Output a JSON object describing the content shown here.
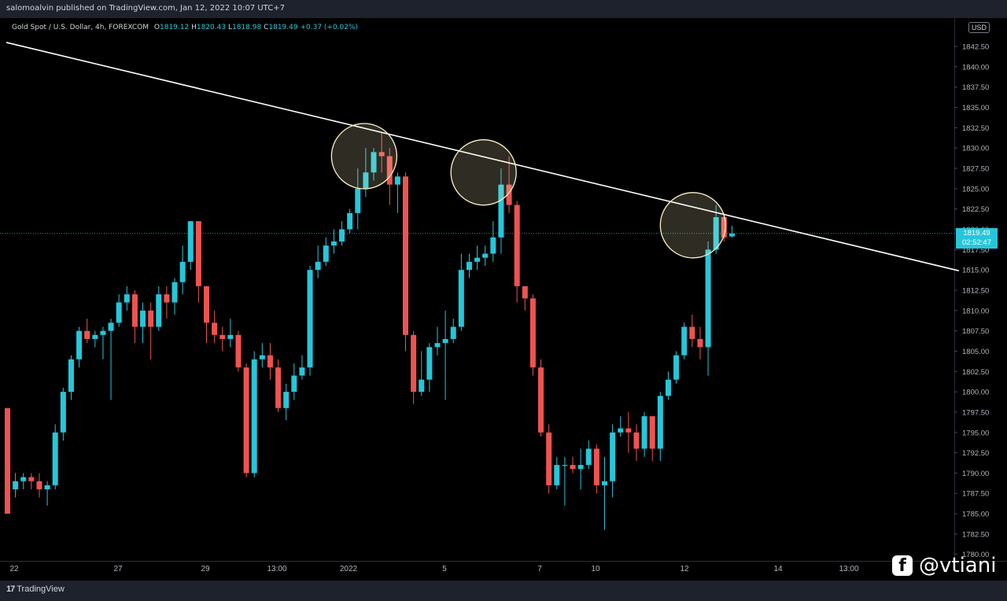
{
  "header": {
    "published": "salomoalvin published on TradingView.com, Jan 12, 2022 10:07 UTC+7"
  },
  "legend": {
    "symbol": "Gold Spot / U.S. Dollar, 4h, FOREXCOM",
    "open_label": "O",
    "open": "1819.12",
    "high_label": "H",
    "high": "1820.43",
    "low_label": "L",
    "low": "1818.98",
    "close_label": "C",
    "close": "1819.49",
    "change": "+0.37 (+0.02%)"
  },
  "currency": "USD",
  "last_price": {
    "price": "1819.49",
    "countdown": "02:52:47"
  },
  "footer": {
    "brand": "TradingView"
  },
  "watermark": {
    "icon": "facebook-icon",
    "handle": "@vtiani"
  },
  "colors": {
    "up": "#26c6da",
    "down": "#ef5350",
    "trendline": "#ffffff",
    "circle": "#fff3c4"
  },
  "chart_data": {
    "type": "candlestick",
    "interval": "4h",
    "y_ticks": [
      "1780.00",
      "1782.50",
      "1785.00",
      "1787.50",
      "1790.00",
      "1792.50",
      "1795.00",
      "1797.50",
      "1800.00",
      "1802.50",
      "1805.00",
      "1807.50",
      "1810.00",
      "1812.50",
      "1815.00",
      "1817.50",
      "1820.00",
      "1822.50",
      "1825.00",
      "1827.50",
      "1830.00",
      "1832.50",
      "1835.00",
      "1837.50",
      "1840.00",
      "1842.50"
    ],
    "ylim": [
      1779.5,
      1844.5
    ],
    "x_ticks": [
      "22",
      "27",
      "29",
      "13:00",
      "2022",
      "5",
      "7",
      "10",
      "12",
      "14",
      "13:00"
    ],
    "candles": [
      [
        1798,
        1785,
        1798,
        1788
      ],
      [
        1788,
        1789,
        1790,
        1787
      ],
      [
        1789,
        1789.5,
        1790,
        1788
      ],
      [
        1789.5,
        1789,
        1790,
        1788
      ],
      [
        1789,
        1788,
        1790,
        1787
      ],
      [
        1788,
        1788.5,
        1789,
        1786
      ],
      [
        1788.5,
        1795,
        1796,
        1788
      ],
      [
        1795,
        1800,
        1800.5,
        1794
      ],
      [
        1800,
        1804,
        1804.5,
        1799
      ],
      [
        1804,
        1807.5,
        1808,
        1803
      ],
      [
        1807.5,
        1806.5,
        1809,
        1806
      ],
      [
        1806.5,
        1807,
        1807.5,
        1805.5
      ],
      [
        1807,
        1807.5,
        1808,
        1804
      ],
      [
        1807.5,
        1808.5,
        1809,
        1799
      ],
      [
        1808.5,
        1811,
        1812,
        1808
      ],
      [
        1811,
        1812,
        1813,
        1810
      ],
      [
        1812,
        1808,
        1812.5,
        1806
      ],
      [
        1808,
        1810,
        1811,
        1806
      ],
      [
        1810,
        1808,
        1811,
        1804
      ],
      [
        1808,
        1812,
        1813,
        1807.5
      ],
      [
        1812,
        1811,
        1813,
        1809
      ],
      [
        1811,
        1813.5,
        1814,
        1809.5
      ],
      [
        1813.5,
        1816,
        1818,
        1812
      ],
      [
        1816,
        1821,
        1821,
        1815
      ],
      [
        1821,
        1813,
        1821,
        1811
      ],
      [
        1813,
        1808.5,
        1813,
        1806
      ],
      [
        1808.5,
        1807,
        1810,
        1806
      ],
      [
        1807,
        1806.5,
        1808,
        1805
      ],
      [
        1806.5,
        1807,
        1809,
        1805.5
      ],
      [
        1807,
        1803,
        1807.5,
        1802.5
      ],
      [
        1803,
        1790,
        1803.5,
        1789.5
      ],
      [
        1790,
        1804,
        1805,
        1789.5
      ],
      [
        1804,
        1804.5,
        1806,
        1803
      ],
      [
        1804.5,
        1803,
        1806,
        1801.5
      ],
      [
        1803,
        1798,
        1804,
        1797.5
      ],
      [
        1798,
        1800,
        1801,
        1796.5
      ],
      [
        1800,
        1802,
        1803.5,
        1799
      ],
      [
        1802,
        1803,
        1804.5,
        1801.5
      ],
      [
        1803,
        1815,
        1815.5,
        1802
      ],
      [
        1815,
        1816,
        1818,
        1814
      ],
      [
        1816,
        1818,
        1819,
        1815.5
      ],
      [
        1818,
        1818.5,
        1820,
        1817
      ],
      [
        1818.5,
        1820,
        1821,
        1818
      ],
      [
        1820,
        1822,
        1822.5,
        1819.5
      ],
      [
        1822,
        1825,
        1827.5,
        1820
      ],
      [
        1825,
        1827,
        1830,
        1824
      ],
      [
        1827,
        1829.5,
        1830,
        1826
      ],
      [
        1829.5,
        1829,
        1832,
        1827
      ],
      [
        1829,
        1825.5,
        1830,
        1823
      ],
      [
        1825.5,
        1826.5,
        1827,
        1822
      ],
      [
        1826.5,
        1807,
        1827,
        1805
      ],
      [
        1807,
        1800,
        1807.5,
        1798.5
      ],
      [
        1800,
        1801.5,
        1805,
        1799.5
      ],
      [
        1801.5,
        1805.5,
        1806,
        1800
      ],
      [
        1805.5,
        1806,
        1808,
        1804.5
      ],
      [
        1806,
        1806.5,
        1810,
        1799
      ],
      [
        1806.5,
        1808,
        1809,
        1806
      ],
      [
        1808,
        1815,
        1817,
        1807.5
      ],
      [
        1815,
        1816,
        1817,
        1814
      ],
      [
        1816,
        1816.5,
        1818,
        1815
      ],
      [
        1816.5,
        1817,
        1818,
        1815.5
      ],
      [
        1817,
        1819,
        1821,
        1816
      ],
      [
        1819,
        1825.5,
        1827.5,
        1817
      ],
      [
        1825.5,
        1823,
        1829,
        1822
      ],
      [
        1823,
        1813,
        1823.5,
        1811
      ],
      [
        1813,
        1811.5,
        1813,
        1810
      ],
      [
        1811.5,
        1803,
        1812,
        1802
      ],
      [
        1803,
        1795,
        1804,
        1794.5
      ],
      [
        1795,
        1788.5,
        1796,
        1787.5
      ],
      [
        1788.5,
        1791,
        1792,
        1788
      ],
      [
        1791,
        1791,
        1792,
        1786
      ],
      [
        1791,
        1790.5,
        1792,
        1790
      ],
      [
        1790.5,
        1791,
        1793,
        1788
      ],
      [
        1791,
        1793,
        1794,
        1790.5
      ],
      [
        1793,
        1788.5,
        1793.5,
        1787.5
      ],
      [
        1788.5,
        1789,
        1792,
        1783
      ],
      [
        1789,
        1795,
        1796,
        1787
      ],
      [
        1795,
        1795.5,
        1797,
        1794.5
      ],
      [
        1795.5,
        1795,
        1797.5,
        1792.5
      ],
      [
        1795,
        1793,
        1796,
        1791.5
      ],
      [
        1793,
        1797,
        1797.5,
        1792
      ],
      [
        1797,
        1793,
        1797,
        1791.5
      ],
      [
        1793,
        1799.5,
        1800,
        1791.5
      ],
      [
        1799.5,
        1801.5,
        1802.5,
        1799
      ],
      [
        1801.5,
        1804.5,
        1805,
        1801
      ],
      [
        1804.5,
        1808,
        1808.5,
        1804
      ],
      [
        1808,
        1806.5,
        1809.5,
        1805.5
      ],
      [
        1806.5,
        1805.5,
        1808,
        1804
      ],
      [
        1805.5,
        1817.5,
        1818.5,
        1802
      ],
      [
        1817.5,
        1821.5,
        1823,
        1817
      ],
      [
        1821.5,
        1819,
        1822,
        1818.5
      ],
      [
        1819.12,
        1819.49,
        1820.43,
        1818.98
      ]
    ],
    "trendline": {
      "start": {
        "candle": -0.15,
        "price": 1843
      },
      "end": {
        "candle": 119.5,
        "price": 1814.9
      }
    },
    "highlight_circles": [
      {
        "candle": 44.8,
        "price": 1829
      },
      {
        "candle": 59.8,
        "price": 1827
      },
      {
        "candle": 86.1,
        "price": 1820.5
      }
    ],
    "current_price": 1819.49
  }
}
